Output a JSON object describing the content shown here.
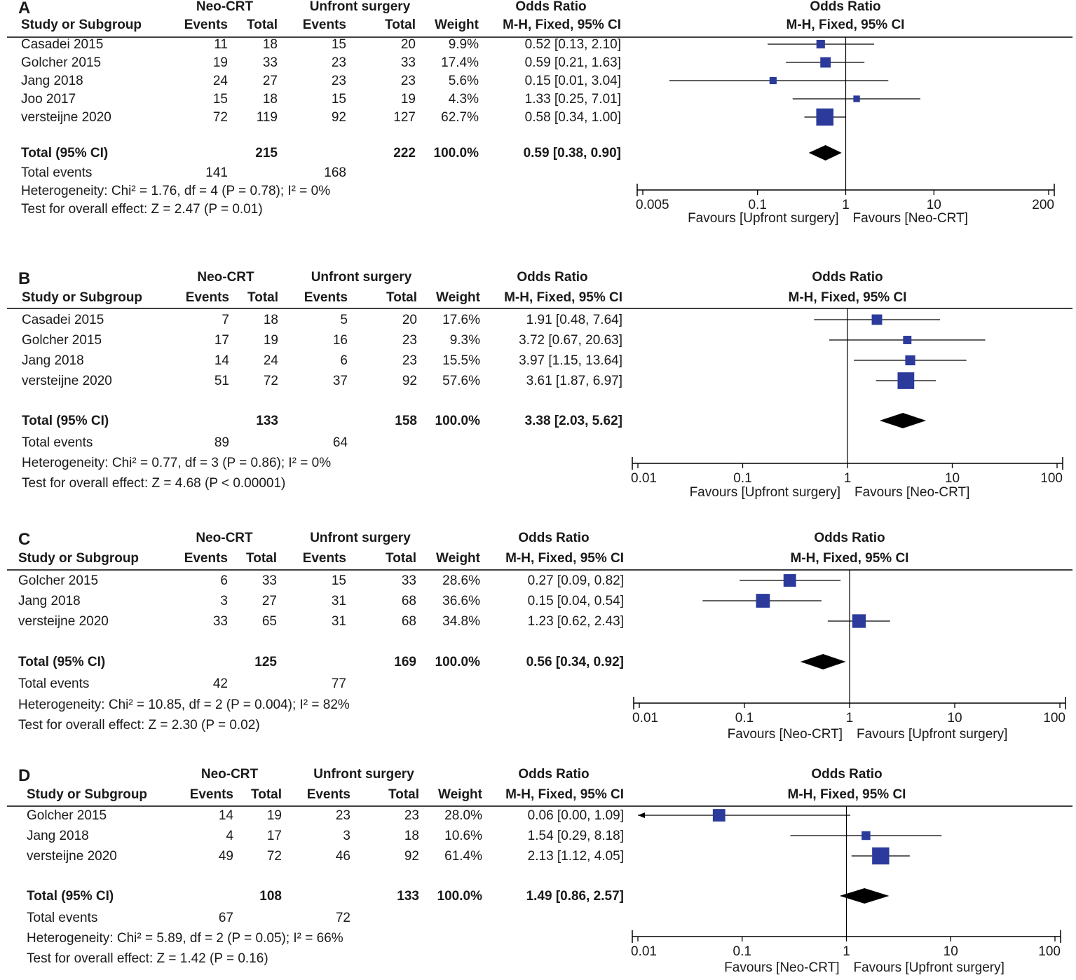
{
  "chart_data": [
    {
      "type": "forest",
      "panel_label": "A",
      "group_headers": {
        "group1": "Neo-CRT",
        "group2": "Unfront surgery",
        "effect_title": "Odds Ratio",
        "plot_title": "Odds Ratio"
      },
      "column_headers": {
        "study": "Study or Subgroup",
        "events1": "Events",
        "total1": "Total",
        "events2": "Events",
        "total2": "Total",
        "weight": "Weight",
        "method": "M-H, Fixed, 95% CI",
        "plot_method": "M-H, Fixed, 95% CI"
      },
      "studies": [
        {
          "name": "Casadei 2015",
          "events1": "11",
          "total1": "18",
          "events2": "15",
          "total2": "20",
          "weight_text": "9.9%",
          "ci_text": "0.52 [0.13, 2.10]",
          "or": 0.52,
          "lo": 0.13,
          "hi": 2.1,
          "weight": 9.9
        },
        {
          "name": "Golcher 2015",
          "events1": "19",
          "total1": "33",
          "events2": "23",
          "total2": "33",
          "weight_text": "17.4%",
          "ci_text": "0.59 [0.21, 1.63]",
          "or": 0.59,
          "lo": 0.21,
          "hi": 1.63,
          "weight": 17.4
        },
        {
          "name": "Jang 2018",
          "events1": "24",
          "total1": "27",
          "events2": "23",
          "total2": "23",
          "weight_text": "5.6%",
          "ci_text": "0.15 [0.01, 3.04]",
          "or": 0.15,
          "lo": 0.01,
          "hi": 3.04,
          "weight": 5.6
        },
        {
          "name": "Joo 2017",
          "events1": "15",
          "total1": "18",
          "events2": "15",
          "total2": "19",
          "weight_text": "4.3%",
          "ci_text": "1.33 [0.25, 7.01]",
          "or": 1.33,
          "lo": 0.25,
          "hi": 7.01,
          "weight": 4.3
        },
        {
          "name": "versteijne 2020",
          "events1": "72",
          "total1": "119",
          "events2": "92",
          "total2": "127",
          "weight_text": "62.7%",
          "ci_text": "0.58 [0.34, 1.00]",
          "or": 0.58,
          "lo": 0.34,
          "hi": 1.0,
          "weight": 62.7
        }
      ],
      "total": {
        "label": "Total (95% CI)",
        "total1": "215",
        "total2": "222",
        "weight_text": "100.0%",
        "ci_text": "0.59 [0.38, 0.90]",
        "or": 0.59,
        "lo": 0.38,
        "hi": 0.9
      },
      "total_events": {
        "label": "Total events",
        "events1": "141",
        "events2": "168"
      },
      "heterogeneity": "Heterogeneity: Chi² = 1.76, df = 4 (P = 0.78); I² = 0%",
      "overall_effect": "Test for overall effect: Z = 2.47 (P = 0.01)",
      "axis": {
        "min": 0.005,
        "max": 200,
        "ticks": [
          0.005,
          0.1,
          1,
          10,
          200
        ],
        "tick_labels": [
          "0.005",
          "0.1",
          "1",
          "10",
          "200"
        ]
      },
      "favours_left": "Favours [Upfront surgery]",
      "favours_right": "Favours [Neo-CRT]"
    },
    {
      "type": "forest",
      "panel_label": "B",
      "group_headers": {
        "group1": "Neo-CRT",
        "group2": "Unfront surgery",
        "effect_title": "Odds Ratio",
        "plot_title": "Odds Ratio"
      },
      "column_headers": {
        "study": "Study or Subgroup",
        "events1": "Events",
        "total1": "Total",
        "events2": "Events",
        "total2": "Total",
        "weight": "Weight",
        "method": "M-H, Fixed, 95% CI",
        "plot_method": "M-H, Fixed, 95% CI"
      },
      "studies": [
        {
          "name": "Casadei 2015",
          "events1": "7",
          "total1": "18",
          "events2": "5",
          "total2": "20",
          "weight_text": "17.6%",
          "ci_text": "1.91 [0.48, 7.64]",
          "or": 1.91,
          "lo": 0.48,
          "hi": 7.64,
          "weight": 17.6
        },
        {
          "name": "Golcher 2015",
          "events1": "17",
          "total1": "19",
          "events2": "16",
          "total2": "23",
          "weight_text": "9.3%",
          "ci_text": "3.72 [0.67, 20.63]",
          "or": 3.72,
          "lo": 0.67,
          "hi": 20.63,
          "weight": 9.3
        },
        {
          "name": "Jang 2018",
          "events1": "14",
          "total1": "24",
          "events2": "6",
          "total2": "23",
          "weight_text": "15.5%",
          "ci_text": "3.97 [1.15, 13.64]",
          "or": 3.97,
          "lo": 1.15,
          "hi": 13.64,
          "weight": 15.5
        },
        {
          "name": "versteijne 2020",
          "events1": "51",
          "total1": "72",
          "events2": "37",
          "total2": "92",
          "weight_text": "57.6%",
          "ci_text": "3.61 [1.87, 6.97]",
          "or": 3.61,
          "lo": 1.87,
          "hi": 6.97,
          "weight": 57.6
        }
      ],
      "total": {
        "label": "Total (95% CI)",
        "total1": "133",
        "total2": "158",
        "weight_text": "100.0%",
        "ci_text": "3.38 [2.03, 5.62]",
        "or": 3.38,
        "lo": 2.03,
        "hi": 5.62
      },
      "total_events": {
        "label": "Total events",
        "events1": "89",
        "events2": "64"
      },
      "heterogeneity": "Heterogeneity: Chi² = 0.77, df = 3 (P = 0.86); I² = 0%",
      "overall_effect": "Test for overall effect: Z = 4.68 (P < 0.00001)",
      "axis": {
        "min": 0.01,
        "max": 100,
        "ticks": [
          0.01,
          0.1,
          1,
          10,
          100
        ],
        "tick_labels": [
          "0.01",
          "0.1",
          "1",
          "10",
          "100"
        ]
      },
      "favours_left": "Favours [Upfront surgery]",
      "favours_right": "Favours [Neo-CRT]"
    },
    {
      "type": "forest",
      "panel_label": "C",
      "group_headers": {
        "group1": "Neo-CRT",
        "group2": "Unfront surgery",
        "effect_title": "Odds Ratio",
        "plot_title": "Odds Ratio"
      },
      "column_headers": {
        "study": "Study or Subgroup",
        "events1": "Events",
        "total1": "Total",
        "events2": "Events",
        "total2": "Total",
        "weight": "Weight",
        "method": "M-H, Fixed, 95% CI",
        "plot_method": "M-H, Fixed, 95% CI"
      },
      "studies": [
        {
          "name": "Golcher 2015",
          "events1": "6",
          "total1": "33",
          "events2": "15",
          "total2": "33",
          "weight_text": "28.6%",
          "ci_text": "0.27 [0.09, 0.82]",
          "or": 0.27,
          "lo": 0.09,
          "hi": 0.82,
          "weight": 28.6
        },
        {
          "name": "Jang 2018",
          "events1": "3",
          "total1": "27",
          "events2": "31",
          "total2": "68",
          "weight_text": "36.6%",
          "ci_text": "0.15 [0.04, 0.54]",
          "or": 0.15,
          "lo": 0.04,
          "hi": 0.54,
          "weight": 36.6
        },
        {
          "name": "versteijne 2020",
          "events1": "33",
          "total1": "65",
          "events2": "31",
          "total2": "68",
          "weight_text": "34.8%",
          "ci_text": "1.23 [0.62, 2.43]",
          "or": 1.23,
          "lo": 0.62,
          "hi": 2.43,
          "weight": 34.8
        }
      ],
      "total": {
        "label": "Total (95% CI)",
        "total1": "125",
        "total2": "169",
        "weight_text": "100.0%",
        "ci_text": "0.56 [0.34, 0.92]",
        "or": 0.56,
        "lo": 0.34,
        "hi": 0.92
      },
      "total_events": {
        "label": "Total events",
        "events1": "42",
        "events2": "77"
      },
      "heterogeneity": "Heterogeneity: Chi² = 10.85, df = 2 (P = 0.004); I² = 82%",
      "overall_effect": "Test for overall effect: Z = 2.30 (P = 0.02)",
      "axis": {
        "min": 0.01,
        "max": 100,
        "ticks": [
          0.01,
          0.1,
          1,
          10,
          100
        ],
        "tick_labels": [
          "0.01",
          "0.1",
          "1",
          "10",
          "100"
        ]
      },
      "favours_left": "Favours [Neo-CRT]",
      "favours_right": "Favours [Upfront surgery]"
    },
    {
      "type": "forest",
      "panel_label": "D",
      "group_headers": {
        "group1": "Neo-CRT",
        "group2": "Unfront surgery",
        "effect_title": "Odds Ratio",
        "plot_title": "Odds Ratio"
      },
      "column_headers": {
        "study": "Study or Subgroup",
        "events1": "Events",
        "total1": "Total",
        "events2": "Events",
        "total2": "Total",
        "weight": "Weight",
        "method": "M-H, Fixed, 95% CI",
        "plot_method": "M-H, Fixed, 95% CI"
      },
      "studies": [
        {
          "name": "Golcher 2015",
          "events1": "14",
          "total1": "19",
          "events2": "23",
          "total2": "23",
          "weight_text": "28.0%",
          "ci_text": "0.06 [0.00, 1.09]",
          "or": 0.06,
          "lo": 0.0,
          "hi": 1.09,
          "weight": 28.0
        },
        {
          "name": "Jang 2018",
          "events1": "4",
          "total1": "17",
          "events2": "3",
          "total2": "18",
          "weight_text": "10.6%",
          "ci_text": "1.54 [0.29, 8.18]",
          "or": 1.54,
          "lo": 0.29,
          "hi": 8.18,
          "weight": 10.6
        },
        {
          "name": "versteijne 2020",
          "events1": "49",
          "total1": "72",
          "events2": "46",
          "total2": "92",
          "weight_text": "61.4%",
          "ci_text": "2.13 [1.12, 4.05]",
          "or": 2.13,
          "lo": 1.12,
          "hi": 4.05,
          "weight": 61.4
        }
      ],
      "total": {
        "label": "Total (95% CI)",
        "total1": "108",
        "total2": "133",
        "weight_text": "100.0%",
        "ci_text": "1.49 [0.86, 2.57]",
        "or": 1.49,
        "lo": 0.86,
        "hi": 2.57
      },
      "total_events": {
        "label": "Total events",
        "events1": "67",
        "events2": "72"
      },
      "heterogeneity": "Heterogeneity: Chi² = 5.89, df = 2 (P = 0.05); I² = 66%",
      "overall_effect": "Test for overall effect: Z = 1.42 (P = 0.16)",
      "axis": {
        "min": 0.01,
        "max": 100,
        "ticks": [
          0.01,
          0.1,
          1,
          10,
          100
        ],
        "tick_labels": [
          "0.01",
          "0.1",
          "1",
          "10",
          "100"
        ]
      },
      "favours_left": "Favours [Neo-CRT]",
      "favours_right": "Favours [Upfront surgery]"
    }
  ],
  "colors": {
    "square": "#2b3a9b",
    "text": "#1a1a1a",
    "line": "#000000",
    "ci_line": "#000000"
  }
}
